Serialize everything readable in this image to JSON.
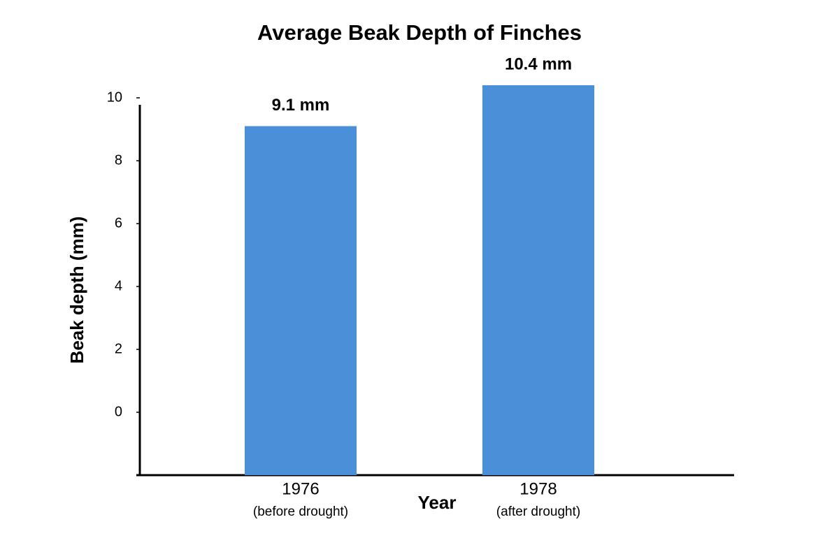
{
  "chart_data": {
    "type": "bar",
    "title": "Average Beak Depth of Finches",
    "x_label": "Year",
    "y_label": "Beak depth (mm)",
    "categories": [
      "1976",
      "1978"
    ],
    "category_notes": [
      "(before drought)",
      "(after drought)"
    ],
    "values": [
      9.1,
      10.4
    ],
    "value_labels": [
      "9.1 mm",
      "10.4 mm"
    ],
    "color": "#4a90d9",
    "ylim": [
      -2,
      10
    ],
    "yticks": [
      0,
      2,
      4,
      6,
      8,
      10
    ],
    "grid": false
  }
}
